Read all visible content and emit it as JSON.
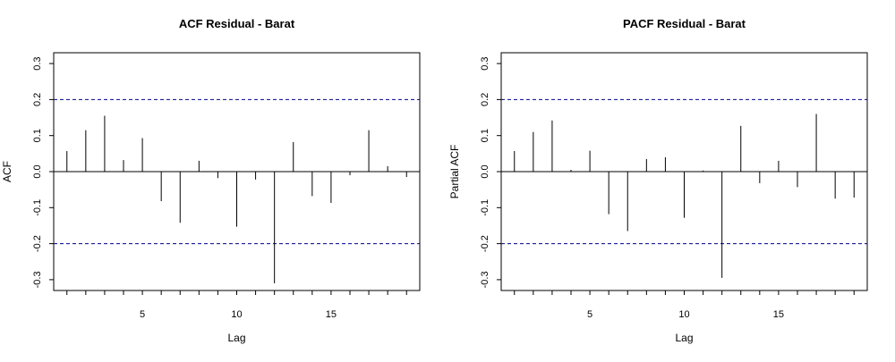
{
  "chart_data": [
    {
      "type": "bar",
      "subtype": "correlogram",
      "title": "ACF Residual - Barat",
      "xlabel": "Lag",
      "ylabel": "ACF",
      "xlim": [
        0.3,
        19.7
      ],
      "ylim": [
        -0.33,
        0.33
      ],
      "xticks": [
        5,
        10,
        15
      ],
      "yticks": [
        -0.3,
        -0.2,
        -0.1,
        0.0,
        0.1,
        0.2,
        0.3
      ],
      "ytick_labels": [
        "-0.3",
        "-0.2",
        "-0.1",
        "0.0",
        "0.1",
        "0.2",
        "0.3"
      ],
      "confidence_band": [
        -0.2,
        0.2
      ],
      "confidence_color": "#00008b",
      "x": [
        1,
        2,
        3,
        4,
        5,
        6,
        7,
        8,
        9,
        10,
        11,
        12,
        13,
        14,
        15,
        16,
        17,
        18,
        19
      ],
      "values": [
        0.057,
        0.115,
        0.155,
        0.032,
        0.093,
        -0.082,
        -0.142,
        0.03,
        -0.018,
        -0.153,
        -0.022,
        -0.31,
        0.082,
        -0.068,
        -0.087,
        -0.01,
        0.115,
        0.015,
        -0.015
      ],
      "grid": false
    },
    {
      "type": "bar",
      "subtype": "correlogram",
      "title": "PACF Residual - Barat",
      "xlabel": "Lag",
      "ylabel": "Partial ACF",
      "xlim": [
        0.3,
        19.7
      ],
      "ylim": [
        -0.33,
        0.33
      ],
      "xticks": [
        5,
        10,
        15
      ],
      "yticks": [
        -0.3,
        -0.2,
        -0.1,
        0.0,
        0.1,
        0.2,
        0.3
      ],
      "ytick_labels": [
        "-0.3",
        "-0.2",
        "-0.1",
        "0.0",
        "0.1",
        "0.2",
        "0.3"
      ],
      "confidence_band": [
        -0.2,
        0.2
      ],
      "confidence_color": "#00008b",
      "x": [
        1,
        2,
        3,
        4,
        5,
        6,
        7,
        8,
        9,
        10,
        11,
        12,
        13,
        14,
        15,
        16,
        17,
        18,
        19
      ],
      "values": [
        0.057,
        0.11,
        0.142,
        0.005,
        0.058,
        -0.118,
        -0.165,
        0.035,
        0.04,
        -0.128,
        0.003,
        -0.295,
        0.127,
        -0.032,
        0.03,
        -0.043,
        0.16,
        -0.075,
        -0.072
      ],
      "grid": false
    }
  ]
}
